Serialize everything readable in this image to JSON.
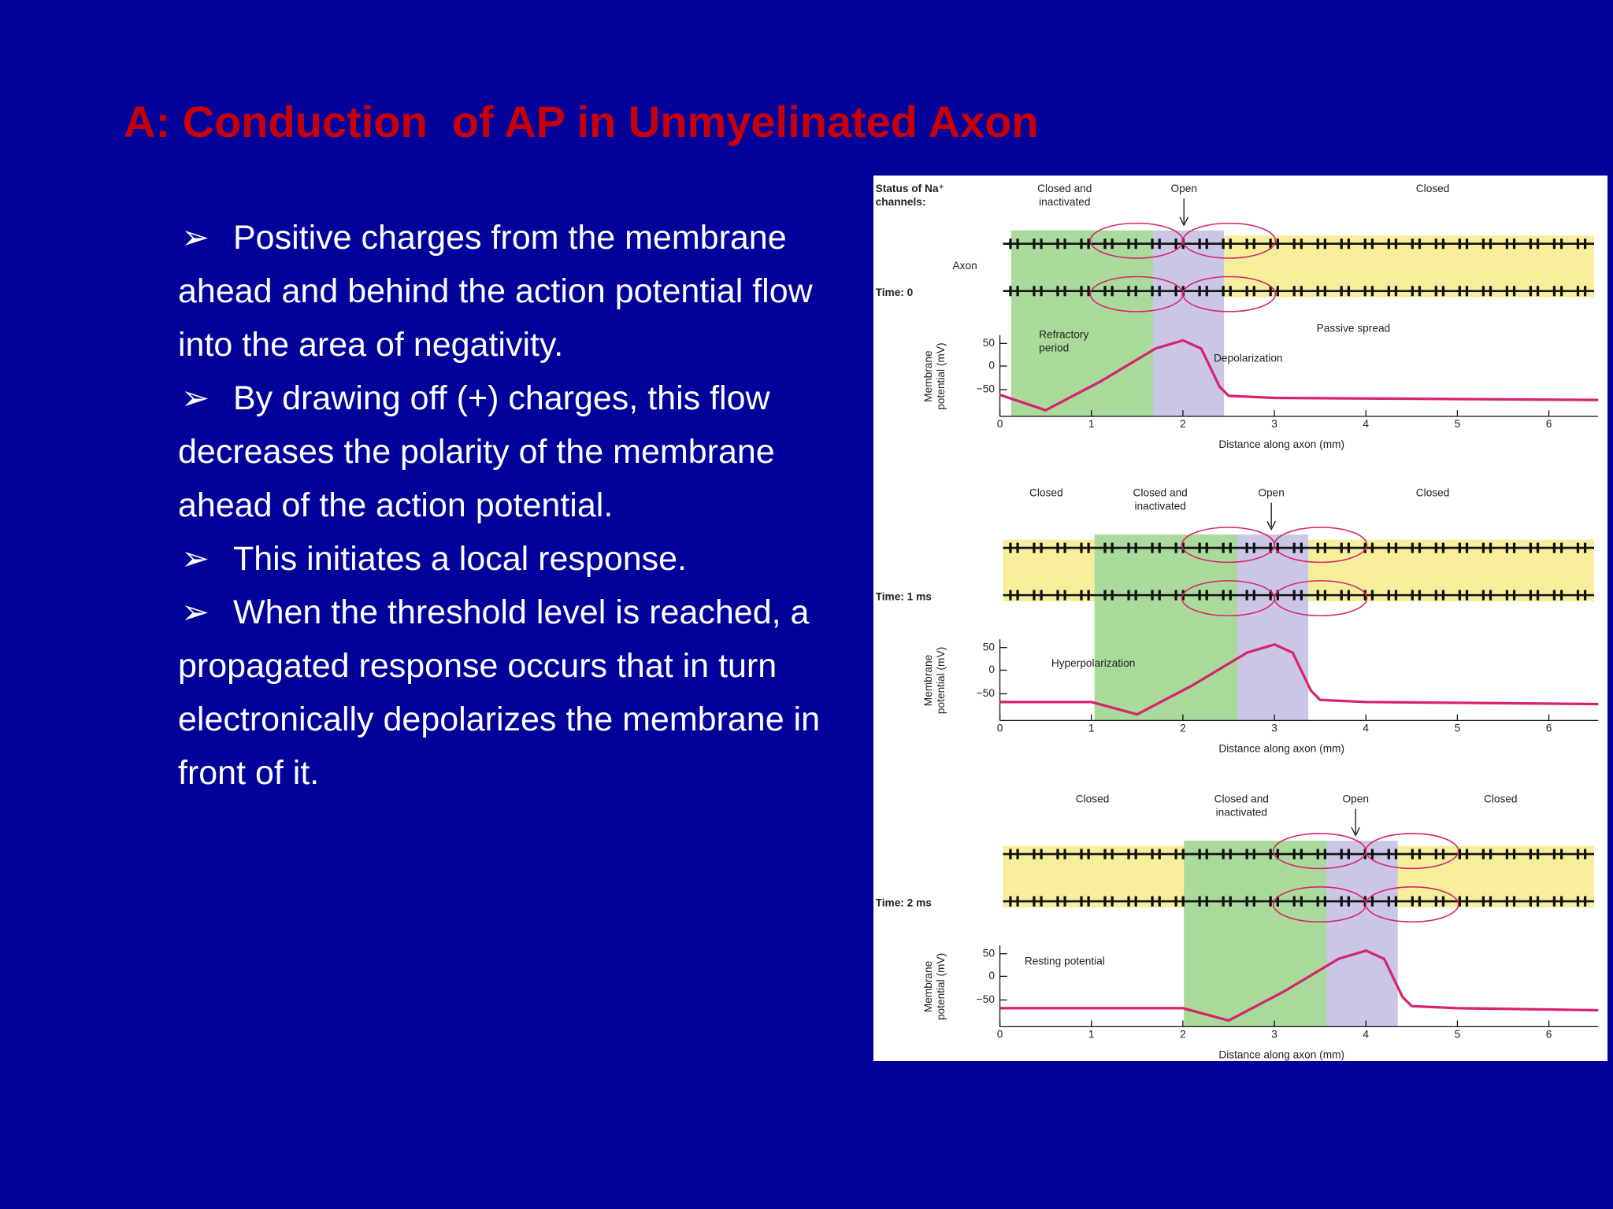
{
  "title": "A: Conduction  of AP in Unmyelinated Axon",
  "bullets": [
    "Positive charges from the membrane ahead and behind the action potential flow into the area of negativity.",
    "By drawing off (+) charges, this flow decreases the polarity of the membrane ahead of the action potential.",
    "This initiates a local response.",
    "When the threshold level is reached, a propagated response occurs that in turn electronically depolarizes the membrane in front of it."
  ],
  "figure": {
    "status_heading": [
      "Status of Na⁺",
      "channels:"
    ],
    "axon_label": "Axon",
    "y_axis_label": [
      "Membrane",
      "potential (mV)"
    ],
    "x_axis_label": "Distance along axon (mm)",
    "y_tick_labels": [
      "50",
      "0",
      "−50"
    ],
    "x_tick_labels": [
      "0",
      "1",
      "2",
      "3",
      "4",
      "5",
      "6"
    ],
    "panels": [
      {
        "time": "Time: 0",
        "statuses": [
          [
            "Closed and",
            "inactivated"
          ],
          [
            "Open"
          ],
          [
            "Closed"
          ]
        ],
        "annotations": [
          [
            "Refractory",
            "period"
          ],
          [
            "Depolarization"
          ],
          [
            "Passive spread"
          ]
        ]
      },
      {
        "time": "Time: 1 ms",
        "statuses": [
          [
            "Closed"
          ],
          [
            "Closed and",
            "inactivated"
          ],
          [
            "Open"
          ],
          [
            "Closed"
          ]
        ],
        "annotations": [
          [
            "Hyperpolarization"
          ]
        ]
      },
      {
        "time": "Time: 2 ms",
        "statuses": [
          [
            "Closed"
          ],
          [
            "Closed and",
            "inactivated"
          ],
          [
            "Open"
          ],
          [
            "Closed"
          ]
        ],
        "annotations": [
          [
            "Resting potential"
          ]
        ]
      }
    ]
  }
}
